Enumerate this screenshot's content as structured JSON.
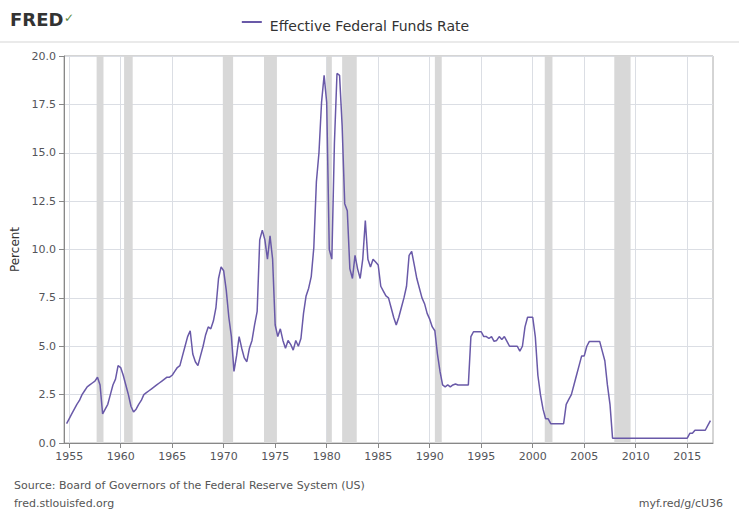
{
  "chart_data": {
    "type": "line",
    "title": "Effective Federal Funds Rate",
    "ylabel": "Percent",
    "annotations": [
      "FRED",
      "✓",
      "Source: Board of Governors of the Federal Reserve System (US)",
      "fred.stlouisfed.org",
      "myf.red/g/cU36"
    ],
    "xlim": [
      1954.5,
      2017.5
    ],
    "ylim": [
      0,
      20
    ],
    "xticks": [
      1955,
      1960,
      1965,
      1970,
      1975,
      1980,
      1985,
      1990,
      1995,
      2000,
      2005,
      2010,
      2015
    ],
    "yticks": [
      {
        "value": 0,
        "label": "0.0"
      },
      2.5,
      {
        "value": 5,
        "label": "5.0"
      },
      7.5,
      {
        "value": 10,
        "label": "10.0"
      },
      12.5,
      {
        "value": 15,
        "label": "15.0"
      },
      17.5,
      {
        "value": 20,
        "label": "20.0"
      }
    ],
    "grid": true,
    "color": "#6959a8",
    "recessions": {
      "color": "#d8d8d8",
      "ranges": [
        [
          1957.667,
          1958.333
        ],
        [
          1960.333,
          1961.167
        ],
        [
          1969.917,
          1970.917
        ],
        [
          1973.917,
          1975.167
        ],
        [
          1980.0,
          1980.5
        ],
        [
          1981.5,
          1982.917
        ],
        [
          1990.5,
          1991.167
        ],
        [
          2001.167,
          2001.917
        ],
        [
          2007.917,
          2009.5
        ]
      ]
    },
    "x": [
      1954.75,
      1955.0,
      1955.25,
      1955.5,
      1955.75,
      1956.0,
      1956.25,
      1956.5,
      1956.75,
      1957.0,
      1957.25,
      1957.5,
      1957.75,
      1958.0,
      1958.25,
      1958.5,
      1958.75,
      1959.0,
      1959.25,
      1959.5,
      1959.75,
      1960.0,
      1960.25,
      1960.5,
      1960.75,
      1961.0,
      1961.25,
      1961.5,
      1961.75,
      1962.0,
      1962.25,
      1962.5,
      1962.75,
      1963.0,
      1963.25,
      1963.5,
      1963.75,
      1964.0,
      1964.25,
      1964.5,
      1964.75,
      1965.0,
      1965.25,
      1965.5,
      1965.75,
      1966.0,
      1966.25,
      1966.5,
      1966.75,
      1967.0,
      1967.25,
      1967.5,
      1967.75,
      1968.0,
      1968.25,
      1968.5,
      1968.75,
      1969.0,
      1969.25,
      1969.5,
      1969.75,
      1970.0,
      1970.25,
      1970.5,
      1970.75,
      1971.0,
      1971.25,
      1971.5,
      1971.75,
      1972.0,
      1972.25,
      1972.5,
      1972.75,
      1973.0,
      1973.25,
      1973.5,
      1973.75,
      1974.0,
      1974.25,
      1974.5,
      1974.75,
      1975.0,
      1975.25,
      1975.5,
      1975.75,
      1976.0,
      1976.25,
      1976.5,
      1976.75,
      1977.0,
      1977.25,
      1977.5,
      1977.75,
      1978.0,
      1978.25,
      1978.5,
      1978.75,
      1979.0,
      1979.25,
      1979.5,
      1979.75,
      1980.0,
      1980.25,
      1980.5,
      1980.75,
      1981.0,
      1981.25,
      1981.5,
      1981.75,
      1982.0,
      1982.25,
      1982.5,
      1982.75,
      1983.0,
      1983.25,
      1983.5,
      1983.75,
      1984.0,
      1984.25,
      1984.5,
      1984.75,
      1985.0,
      1985.25,
      1985.5,
      1985.75,
      1986.0,
      1986.25,
      1986.5,
      1986.75,
      1987.0,
      1987.25,
      1987.5,
      1987.75,
      1988.0,
      1988.25,
      1988.5,
      1988.75,
      1989.0,
      1989.25,
      1989.5,
      1989.75,
      1990.0,
      1990.25,
      1990.5,
      1990.75,
      1991.0,
      1991.25,
      1991.5,
      1991.75,
      1992.0,
      1992.25,
      1992.5,
      1992.75,
      1993.0,
      1993.25,
      1993.5,
      1993.75,
      1994.0,
      1994.25,
      1994.5,
      1994.75,
      1995.0,
      1995.25,
      1995.5,
      1995.75,
      1996.0,
      1996.25,
      1996.5,
      1996.75,
      1997.0,
      1997.25,
      1997.5,
      1997.75,
      1998.0,
      1998.25,
      1998.5,
      1998.75,
      1999.0,
      1999.25,
      1999.5,
      1999.75,
      2000.0,
      2000.25,
      2000.5,
      2000.75,
      2001.0,
      2001.25,
      2001.5,
      2001.75,
      2002.0,
      2002.25,
      2002.5,
      2002.75,
      2003.0,
      2003.25,
      2003.5,
      2003.75,
      2004.0,
      2004.25,
      2004.5,
      2004.75,
      2005.0,
      2005.25,
      2005.5,
      2005.75,
      2006.0,
      2006.25,
      2006.5,
      2006.75,
      2007.0,
      2007.25,
      2007.5,
      2007.75,
      2008.0,
      2008.25,
      2008.5,
      2008.75,
      2009.0,
      2009.25,
      2009.5,
      2009.75,
      2010.0,
      2010.25,
      2010.5,
      2010.75,
      2011.0,
      2011.25,
      2011.5,
      2011.75,
      2012.0,
      2012.25,
      2012.5,
      2012.75,
      2013.0,
      2013.25,
      2013.5,
      2013.75,
      2014.0,
      2014.25,
      2014.5,
      2014.75,
      2015.0,
      2015.25,
      2015.5,
      2015.75,
      2016.0,
      2016.25,
      2016.5,
      2016.75,
      2017.0,
      2017.25
    ],
    "values": [
      1.0,
      1.25,
      1.5,
      1.75,
      2.0,
      2.2,
      2.5,
      2.7,
      2.9,
      3.0,
      3.1,
      3.2,
      3.4,
      3.0,
      1.5,
      1.75,
      2.0,
      2.5,
      3.0,
      3.3,
      4.0,
      3.9,
      3.5,
      3.0,
      2.5,
      1.9,
      1.6,
      1.75,
      2.0,
      2.2,
      2.5,
      2.6,
      2.7,
      2.8,
      2.9,
      3.0,
      3.1,
      3.2,
      3.3,
      3.4,
      3.4,
      3.5,
      3.7,
      3.9,
      4.0,
      4.5,
      5.0,
      5.5,
      5.8,
      4.6,
      4.2,
      4.0,
      4.5,
      5.0,
      5.6,
      6.0,
      5.9,
      6.3,
      7.0,
      8.5,
      9.1,
      8.9,
      7.9,
      6.5,
      5.5,
      3.7,
      4.5,
      5.5,
      4.9,
      4.4,
      4.2,
      4.9,
      5.3,
      6.1,
      6.8,
      10.5,
      11.0,
      10.5,
      9.5,
      10.7,
      9.5,
      6.1,
      5.5,
      5.9,
      5.3,
      4.9,
      5.3,
      5.1,
      4.8,
      5.3,
      5.0,
      5.4,
      6.7,
      7.6,
      8.0,
      8.6,
      10.1,
      13.5,
      15.0,
      17.6,
      19.0,
      17.6,
      10.0,
      9.5,
      15.5,
      19.1,
      19.0,
      16.4,
      12.37,
      12.0,
      9.0,
      8.5,
      9.7,
      9.0,
      8.5,
      9.5,
      11.5,
      9.5,
      9.1,
      9.5,
      9.35,
      9.2,
      8.1,
      7.85,
      7.6,
      7.5,
      7.0,
      6.5,
      6.1,
      6.5,
      7.0,
      7.5,
      8.1,
      9.7,
      9.9,
      9.2,
      8.5,
      8.0,
      7.5,
      7.2,
      6.7,
      6.4,
      6.0,
      5.8,
      4.6,
      3.7,
      3.0,
      2.9,
      3.0,
      2.9,
      3.0,
      3.05,
      3.0,
      3.0,
      3.0,
      3.0,
      3.0,
      5.5,
      5.75,
      5.75,
      5.75,
      5.75,
      5.5,
      5.5,
      5.4,
      5.5,
      5.25,
      5.3,
      5.5,
      5.35,
      5.5,
      5.25,
      5.0,
      5.0,
      5.0,
      5.0,
      4.75,
      5.0,
      6.0,
      6.5,
      6.5,
      6.5,
      5.5,
      3.5,
      2.5,
      1.75,
      1.25,
      1.25,
      1.0,
      1.0,
      1.0,
      1.0,
      1.0,
      1.0,
      2.0,
      2.25,
      2.5,
      3.0,
      3.5,
      4.0,
      4.5,
      4.5,
      5.0,
      5.25,
      5.25,
      5.25,
      5.25,
      5.25,
      4.75,
      4.25,
      3.0,
      2.0,
      0.25,
      0.25,
      0.25,
      0.25,
      0.25,
      0.25,
      0.25,
      0.25,
      0.25,
      0.25,
      0.25,
      0.25,
      0.25,
      0.25,
      0.25,
      0.25,
      0.25,
      0.25,
      0.25,
      0.25,
      0.25,
      0.25,
      0.25,
      0.25,
      0.25,
      0.25,
      0.25,
      0.25,
      0.25,
      0.25,
      0.5,
      0.5,
      0.66,
      0.66,
      0.66,
      0.66,
      0.66,
      0.91,
      1.16
    ]
  }
}
